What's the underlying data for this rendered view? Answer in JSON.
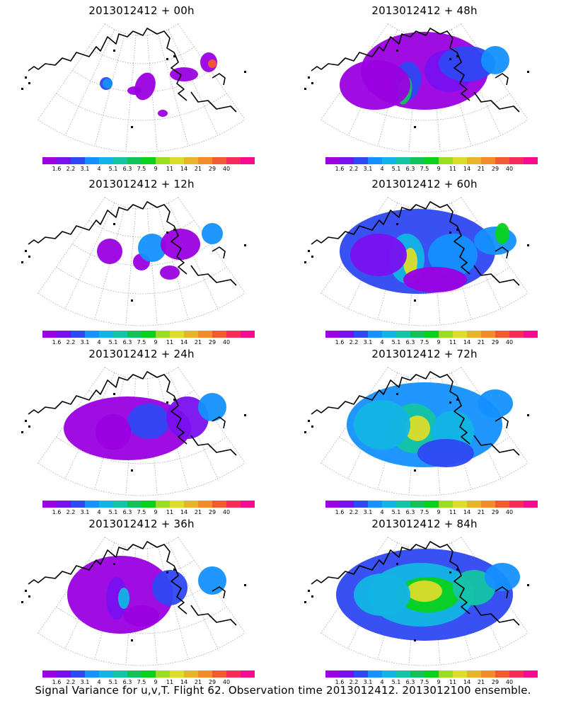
{
  "colors": [
    "#9a00e0",
    "#7a10f0",
    "#2e48f2",
    "#1490ff",
    "#12b4e4",
    "#14c4a4",
    "#14c25a",
    "#08d21e",
    "#9ade24",
    "#dcdc2a",
    "#e8b42a",
    "#f08c2a",
    "#f45a32",
    "#f52c5a",
    "#f50c8c"
  ],
  "levels": [
    "1.6",
    "2.2",
    "3.1",
    "4",
    "5.1",
    "6.3",
    "7.5",
    "9",
    "11",
    "14",
    "21",
    "29",
    "40"
  ],
  "panels": [
    {
      "title": "2013012412 + 00h",
      "icon": "polar-map-icon"
    },
    {
      "title": "2013012412 + 48h",
      "icon": "polar-map-icon"
    },
    {
      "title": "2013012412 + 12h",
      "icon": "polar-map-icon"
    },
    {
      "title": "2013012412 + 60h",
      "icon": "polar-map-icon"
    },
    {
      "title": "2013012412 + 24h",
      "icon": "polar-map-icon"
    },
    {
      "title": "2013012412 + 72h",
      "icon": "polar-map-icon"
    },
    {
      "title": "2013012412 + 36h",
      "icon": "polar-map-icon"
    },
    {
      "title": "2013012412 + 84h",
      "icon": "polar-map-icon"
    }
  ],
  "caption": "Signal Variance for u,v,T. Flight 62. Observation time 2013012412. 2013012100 ensemble."
}
